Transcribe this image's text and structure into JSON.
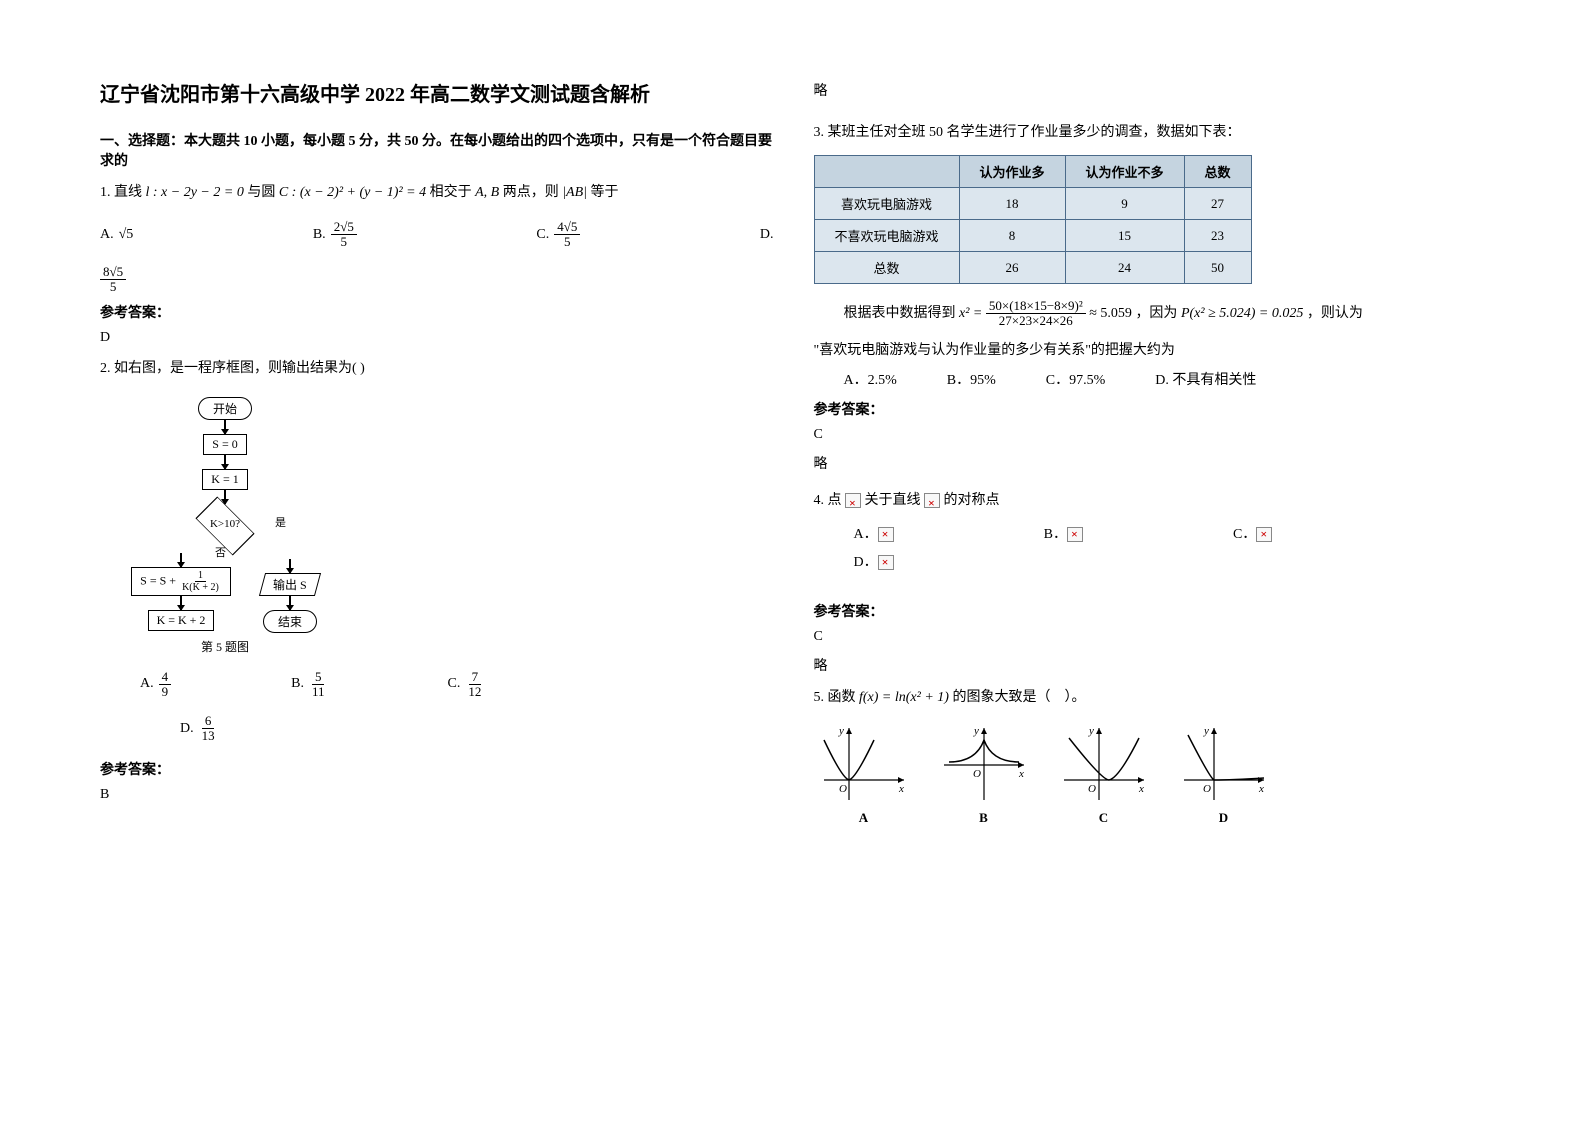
{
  "title": "辽宁省沈阳市第十六高级中学 2022 年高二数学文测试题含解析",
  "section1_title": "一、选择题：本大题共 10 小题，每小题 5 分，共 50 分。在每小题给出的四个选项中，只有是一个符合题目要求的",
  "q1": {
    "stem_prefix": "1. 直线 ",
    "line_eq": "l : x − 2y − 2 = 0",
    "mid1": " 与圆 ",
    "circle_eq": "C : (x − 2)² + (y − 1)² = 4",
    "mid2": " 相交于 ",
    "pts": "A, B",
    "mid3": " 两点，则 ",
    "ab": "|AB|",
    "suffix": " 等于",
    "optA_prefix": "A. ",
    "optA_val": "√5",
    "optB_prefix": "B. ",
    "optB_num": "2√5",
    "optB_den": "5",
    "optC_prefix": "C. ",
    "optC_num": "4√5",
    "optC_den": "5",
    "optD_prefix": "D. ",
    "optD_num": "8√5",
    "optD_den": "5"
  },
  "answer_label": "参考答案：",
  "q1_answer": "D",
  "q2": {
    "stem": "2. 如右图，是一程序框图，则输出结果为(            )",
    "fc_start": "开始",
    "fc_s0": "S = 0",
    "fc_k1": "K = 1",
    "fc_cond": "K>10?",
    "fc_yes": "是",
    "fc_no": "否",
    "fc_update_left": "S = S +",
    "fc_update_num": "1",
    "fc_update_den": "K(K + 2)",
    "fc_output": "输出 S",
    "fc_k2": "K = K + 2",
    "fc_end": "结束",
    "caption": "第 5 题图",
    "optA_prefix": "A. ",
    "optA_num": "4",
    "optA_den": "9",
    "optB_prefix": "B. ",
    "optB_num": "5",
    "optB_den": "11",
    "optC_prefix": "C. ",
    "optC_num": "7",
    "optC_den": "12",
    "optD_prefix": "D. ",
    "optD_num": "6",
    "optD_den": "13"
  },
  "q2_answer": "B",
  "q2_note": "略",
  "q3": {
    "stem": "3. 某班主任对全班 50 名学生进行了作业量多少的调查，数据如下表：",
    "table": {
      "header_bg": "#c5d4e0",
      "cell_bg": "#dce6ee",
      "border_color": "#4a6a8a",
      "headers": [
        "",
        "认为作业多",
        "认为作业不多",
        "总数"
      ],
      "rows": [
        [
          "喜欢玩电脑游戏",
          "18",
          "9",
          "27"
        ],
        [
          "不喜欢玩电脑游戏",
          "8",
          "15",
          "23"
        ],
        [
          "总数",
          "26",
          "24",
          "50"
        ]
      ]
    },
    "calc_prefix": "根据表中数据得到",
    "calc_lhs": "x² = ",
    "calc_num": "50×(18×15−8×9)²",
    "calc_den": "27×23×24×26",
    "calc_approx": " ≈ 5.059",
    "because": "，因为",
    "pcond": "P(x² ≥ 5.024) = 0.025",
    "calc_suffix": "，则认为",
    "conclusion": "\"喜欢玩电脑游戏与认为作业量的多少有关系\"的把握大约为",
    "optA": "A．2.5%",
    "optB": "B．95%",
    "optC": "C．97.5%",
    "optD": "D. 不具有相关性"
  },
  "q3_answer": "C",
  "q3_note": "略",
  "q4": {
    "stem_prefix": "4. 点 ",
    "stem_mid": " 关于直线 ",
    "stem_suffix": " 的对称点",
    "optA": "A．",
    "optB": "B．",
    "optC": "C．",
    "optD": "D．"
  },
  "q4_answer": "C",
  "q4_note": "略",
  "q5": {
    "stem_prefix": "5. 函数",
    "fx": "f(x) = ln(x² + 1)",
    "stem_suffix": "的图象大致是（　）。",
    "labels": [
      "A",
      "B",
      "C",
      "D"
    ],
    "graphs": {
      "axis_color": "#000000",
      "stroke_width": 1.2,
      "O_label": "O",
      "x_label": "x",
      "y_label": "y"
    }
  }
}
